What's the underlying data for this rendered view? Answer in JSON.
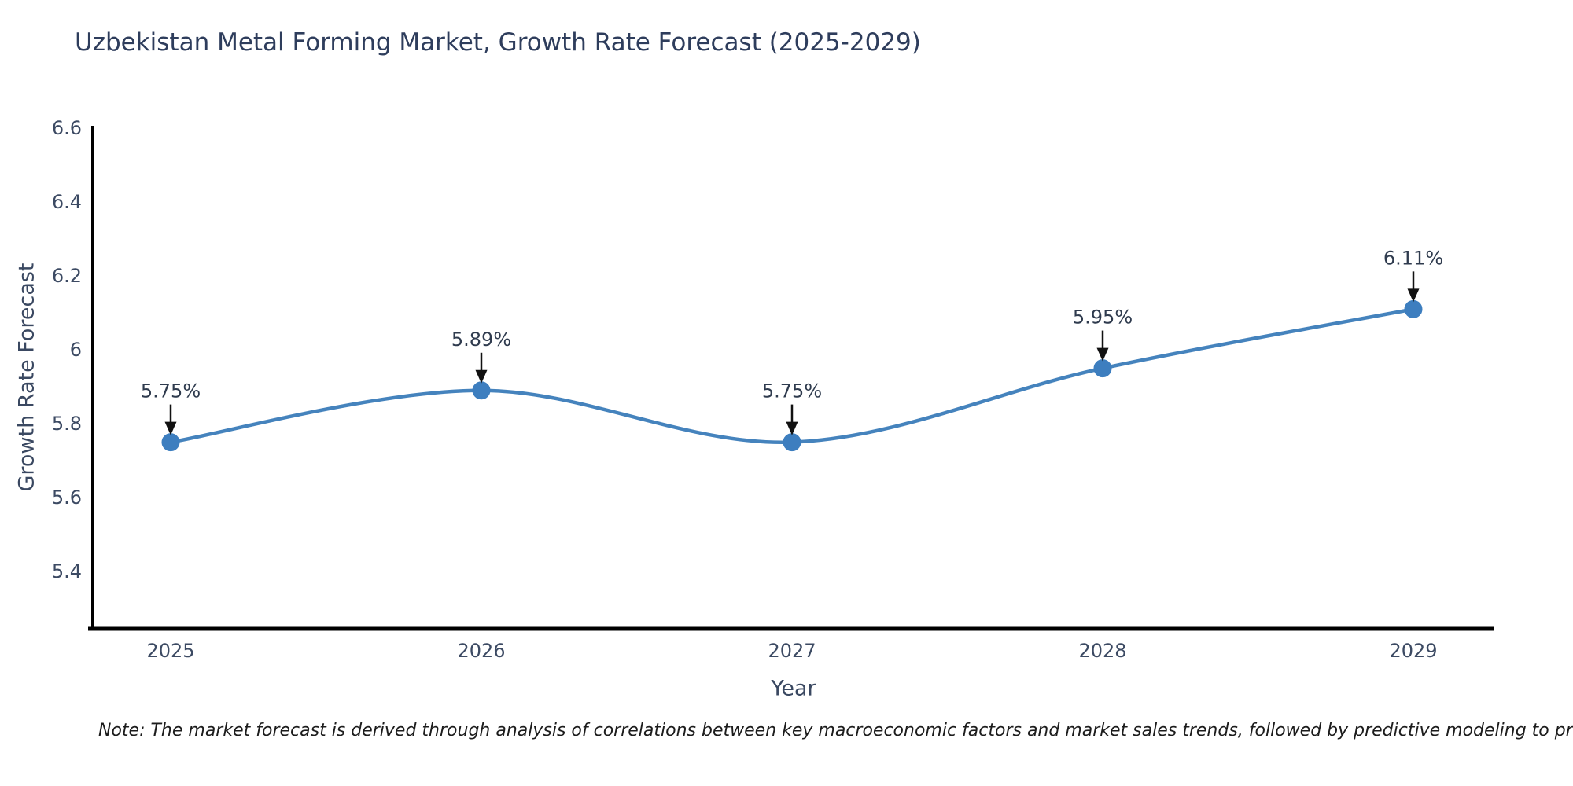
{
  "page": {
    "background": "#ffffff"
  },
  "chart_data": {
    "type": "line",
    "title": "Uzbekistan Metal Forming Market, Growth Rate Forecast (2025-2029)",
    "xlabel": "Year",
    "ylabel": "Growth Rate Forecast",
    "categories": [
      "2025",
      "2026",
      "2027",
      "2028",
      "2029"
    ],
    "series": [
      {
        "name": "Growth Rate Forecast",
        "values": [
          5.75,
          5.89,
          5.75,
          5.95,
          6.11
        ]
      }
    ],
    "point_labels": [
      "5.75%",
      "5.89%",
      "5.75%",
      "5.95%",
      "6.11%"
    ],
    "yticks": [
      5.4,
      5.6,
      5.8,
      6,
      6.2,
      6.4,
      6.6
    ],
    "ylim": [
      5.245,
      6.6
    ],
    "grid": false,
    "legend_position": "none",
    "line_smooth": true,
    "colors": {
      "line": "#4583bd",
      "marker": "#3d7ebf",
      "axis": "#000000",
      "tick_label": "#3c4a63",
      "title": "#2e3d5c",
      "annotation_text": "#2f3b4e",
      "annotation_arrow": "#111111"
    }
  },
  "note": {
    "text": "Note: The market forecast is derived through analysis of correlations between key macroeconomic factors and market sales trends, followed by predictive modeling to project future sales"
  }
}
